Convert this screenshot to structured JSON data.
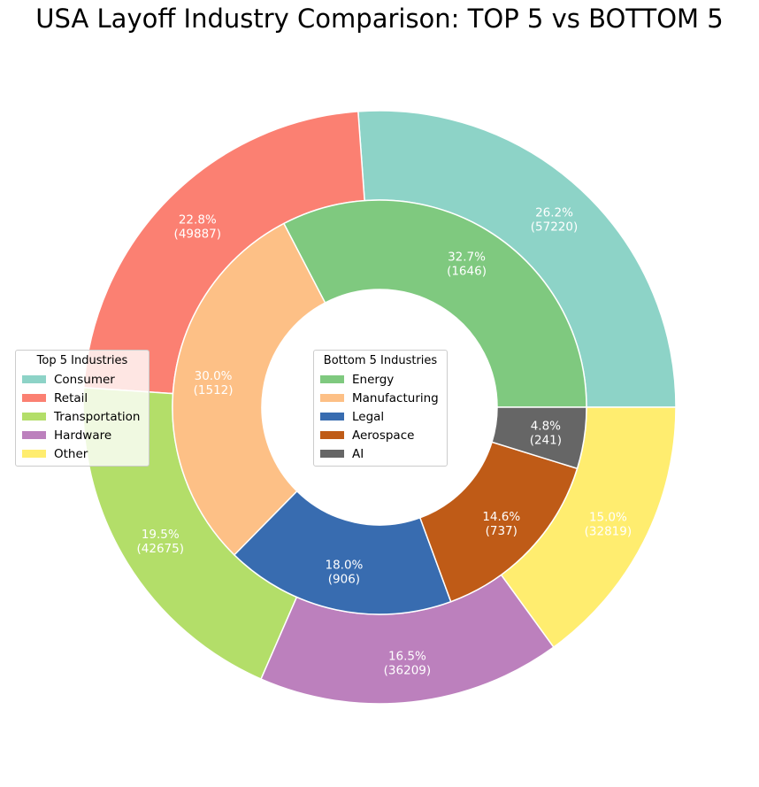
{
  "title": "USA Layoff Industry Comparison: TOP 5 vs BOTTOM 5",
  "chart_data": [
    {
      "type": "pie",
      "ring": "outer",
      "legend_title": "Top 5 Industries",
      "legend_placement": "center-left",
      "categories": [
        "Consumer",
        "Retail",
        "Transportation",
        "Hardware",
        "Other"
      ],
      "values": [
        57220,
        49887,
        42675,
        36209,
        32819
      ],
      "percent_labels": [
        "26.2%",
        "22.8%",
        "19.5%",
        "16.5%",
        "15.0%"
      ],
      "value_labels": [
        "(57220)",
        "(49887)",
        "(42675)",
        "(36209)",
        "(32819)"
      ],
      "colors": [
        "#8dd3c7",
        "#fb8072",
        "#b3de69",
        "#bc80bd",
        "#ffed6f"
      ]
    },
    {
      "type": "pie",
      "ring": "inner",
      "legend_title": "Bottom 5 Industries",
      "legend_placement": "center",
      "categories": [
        "Energy",
        "Manufacturing",
        "Legal",
        "Aerospace",
        "AI"
      ],
      "values": [
        1646,
        1512,
        906,
        737,
        241
      ],
      "percent_labels": [
        "32.7%",
        "30.0%",
        "18.0%",
        "14.6%",
        "4.8%"
      ],
      "value_labels": [
        "(1646)",
        "(1512)",
        "(906)",
        "(737)",
        "(241)"
      ],
      "colors": [
        "#7fc97f",
        "#fdc086",
        "#386cb0",
        "#bf5b17",
        "#666666"
      ]
    }
  ]
}
